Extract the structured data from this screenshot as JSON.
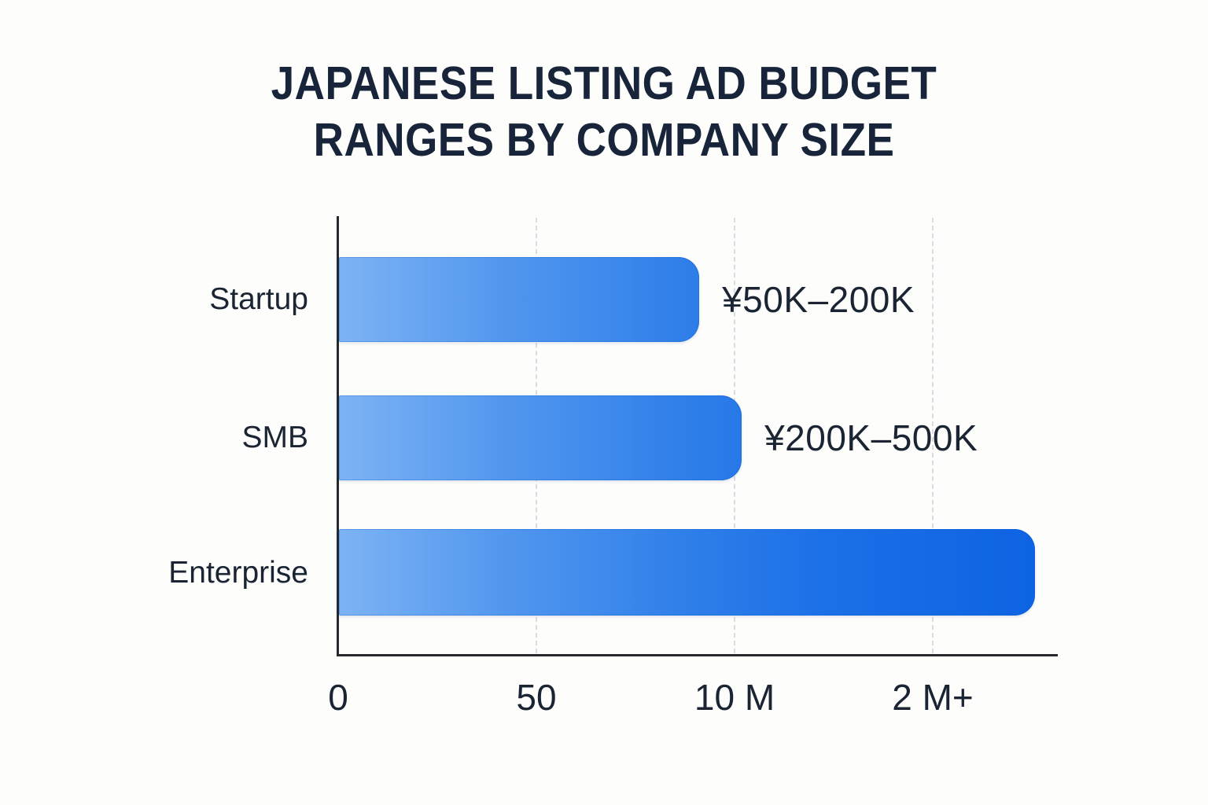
{
  "header": {
    "title_line1": "JAPANESE LISTING AD BUDGET",
    "title_line2": "RANGES BY COMPANY SIZE"
  },
  "chart_data": {
    "type": "bar",
    "orientation": "horizontal",
    "title": "JAPANESE LISTING AD BUDGET RANGES BY COMPANY SIZE",
    "categories": [
      "Startup",
      "SMB",
      "Enterprise"
    ],
    "values": [
      "¥50K–200K",
      "¥200K–500K",
      ""
    ],
    "series": [
      {
        "name": "Startup",
        "budget_range_label": "¥50K–200K",
        "bar_length_pct": 50.9
      },
      {
        "name": "SMB",
        "budget_range_label": "¥200K–500K",
        "bar_length_pct": 56.9
      },
      {
        "name": "Enterprise",
        "budget_range_label": "",
        "bar_length_pct": 98.3
      }
    ],
    "bar_length_pct": [
      50.9,
      56.9,
      98.3
    ],
    "x_ticks": {
      "labels": [
        "0",
        "50",
        "10 M",
        "2 M+"
      ],
      "positions_pct": [
        0,
        28,
        56,
        84
      ]
    },
    "xlabel": "",
    "ylabel": "",
    "legend": null,
    "grid": "vertical dashed gridlines at tick positions",
    "colors": {
      "bar_gradient_start": "#7DB3F4",
      "bar_gradient_end": "#0D62E2",
      "title_text": "#17243A",
      "label_text": "#1A2433",
      "gridline": "#D9DDE2",
      "axis": "#26282B",
      "background": "#FDFDFC"
    }
  }
}
